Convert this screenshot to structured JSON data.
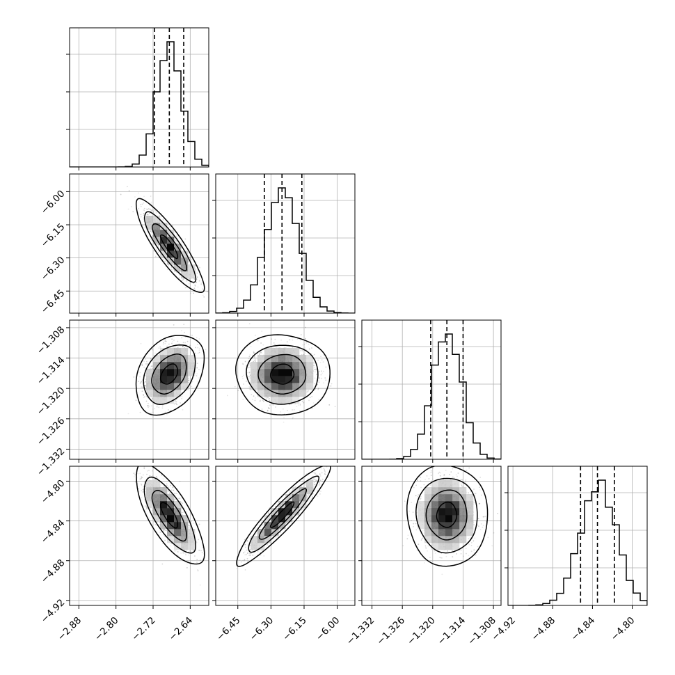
{
  "chart_data": {
    "type": "corner",
    "parameters": [
      {
        "name": "",
        "ticks": [
          -2.88,
          -2.8,
          -2.72,
          -2.64
        ],
        "tick_labels": [
          "−2.88",
          "−2.80",
          "−2.72",
          "−2.64"
        ],
        "range": [
          -2.9,
          -2.6
        ],
        "mean": -2.685,
        "sd": 0.026,
        "quantiles": [
          -2.717,
          -2.685,
          -2.654
        ]
      },
      {
        "name": "",
        "ticks": [
          -6.45,
          -6.3,
          -6.15,
          -6.0
        ],
        "tick_labels": [
          "−6.45",
          "−6.30",
          "−6.15",
          "−6.00"
        ],
        "range": [
          -6.55,
          -5.92
        ],
        "mean": -6.248,
        "sd": 0.075,
        "quantiles": [
          -6.33,
          -6.25,
          -6.16
        ]
      },
      {
        "name": "",
        "ticks": [
          -1.332,
          -1.326,
          -1.32,
          -1.314,
          -1.308
        ],
        "tick_labels": [
          "−1.332",
          "−1.326",
          "−1.320",
          "−1.314",
          "−1.308"
        ],
        "range": [
          -1.334,
          -1.3065
        ],
        "mean": -1.3172,
        "sd": 0.0028,
        "quantiles": [
          -1.3204,
          -1.3172,
          -1.314
        ]
      },
      {
        "name": "",
        "ticks": [
          -4.92,
          -4.88,
          -4.84,
          -4.8
        ],
        "tick_labels": [
          "−4.92",
          "−4.88",
          "−4.84",
          "−4.80"
        ],
        "range": [
          -4.925,
          -4.785
        ],
        "mean": -4.834,
        "sd": 0.018,
        "quantiles": [
          -4.852,
          -4.835,
          -4.818
        ]
      }
    ],
    "correlations": [
      [
        1.0,
        -0.88,
        0.35,
        -0.75
      ],
      [
        -0.88,
        1.0,
        0.0,
        0.93
      ],
      [
        0.35,
        0.0,
        1.0,
        0.0
      ],
      [
        -0.75,
        0.93,
        0.0,
        1.0
      ]
    ],
    "histogram_bins": 20,
    "contour_levels_sigma": [
      0.5,
      1.0,
      1.5,
      2.0
    ],
    "grid": true
  }
}
